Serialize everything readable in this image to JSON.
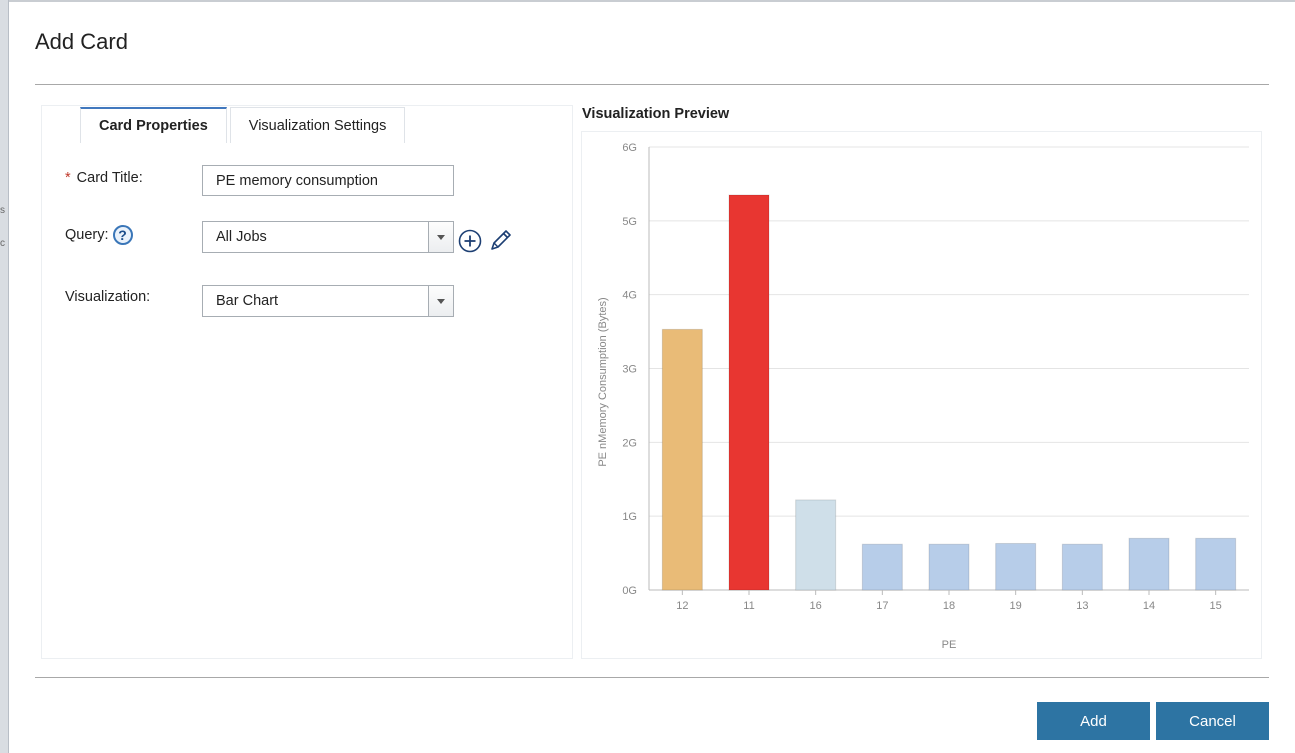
{
  "dialog": {
    "title": "Add Card",
    "tabs": [
      {
        "label": "Card Properties",
        "active": true
      },
      {
        "label": "Visualization Settings",
        "active": false
      }
    ],
    "form": {
      "required_mark": "*",
      "card_title_label": "Card Title:",
      "card_title_value": "PE memory consumption",
      "query_label": "Query:",
      "query_value": "All Jobs",
      "visualization_label": "Visualization:",
      "visualization_value": "Bar Chart",
      "help_glyph": "?",
      "icons": [
        "help-icon",
        "add-circle-icon",
        "pencil-icon",
        "chevron-down-icon"
      ]
    },
    "preview": {
      "title": "Visualization Preview"
    },
    "buttons": {
      "add_label": "Add",
      "cancel_label": "Cancel"
    },
    "colors": {
      "accent": "#2d74a3",
      "tab_active_border": "#4178be"
    }
  },
  "chart_data": {
    "type": "bar",
    "categories": [
      "12",
      "11",
      "16",
      "17",
      "18",
      "19",
      "13",
      "14",
      "15"
    ],
    "values": [
      3.53,
      5.35,
      1.22,
      0.62,
      0.62,
      0.63,
      0.62,
      0.7,
      0.7
    ],
    "colors": [
      "#e9bb77",
      "#e83631",
      "#cfdfe9",
      "#b7cde9",
      "#b7cde9",
      "#b7cde9",
      "#b7cde9",
      "#b7cde9",
      "#b7cde9"
    ],
    "xlabel": "PE",
    "ylabel": "PE nMemory Consumption  (Bytes)",
    "ylim": [
      0,
      6
    ],
    "yticks": [
      "0G",
      "1G",
      "2G",
      "3G",
      "4G",
      "5G",
      "6G"
    ],
    "grid": true,
    "legend": "none"
  }
}
